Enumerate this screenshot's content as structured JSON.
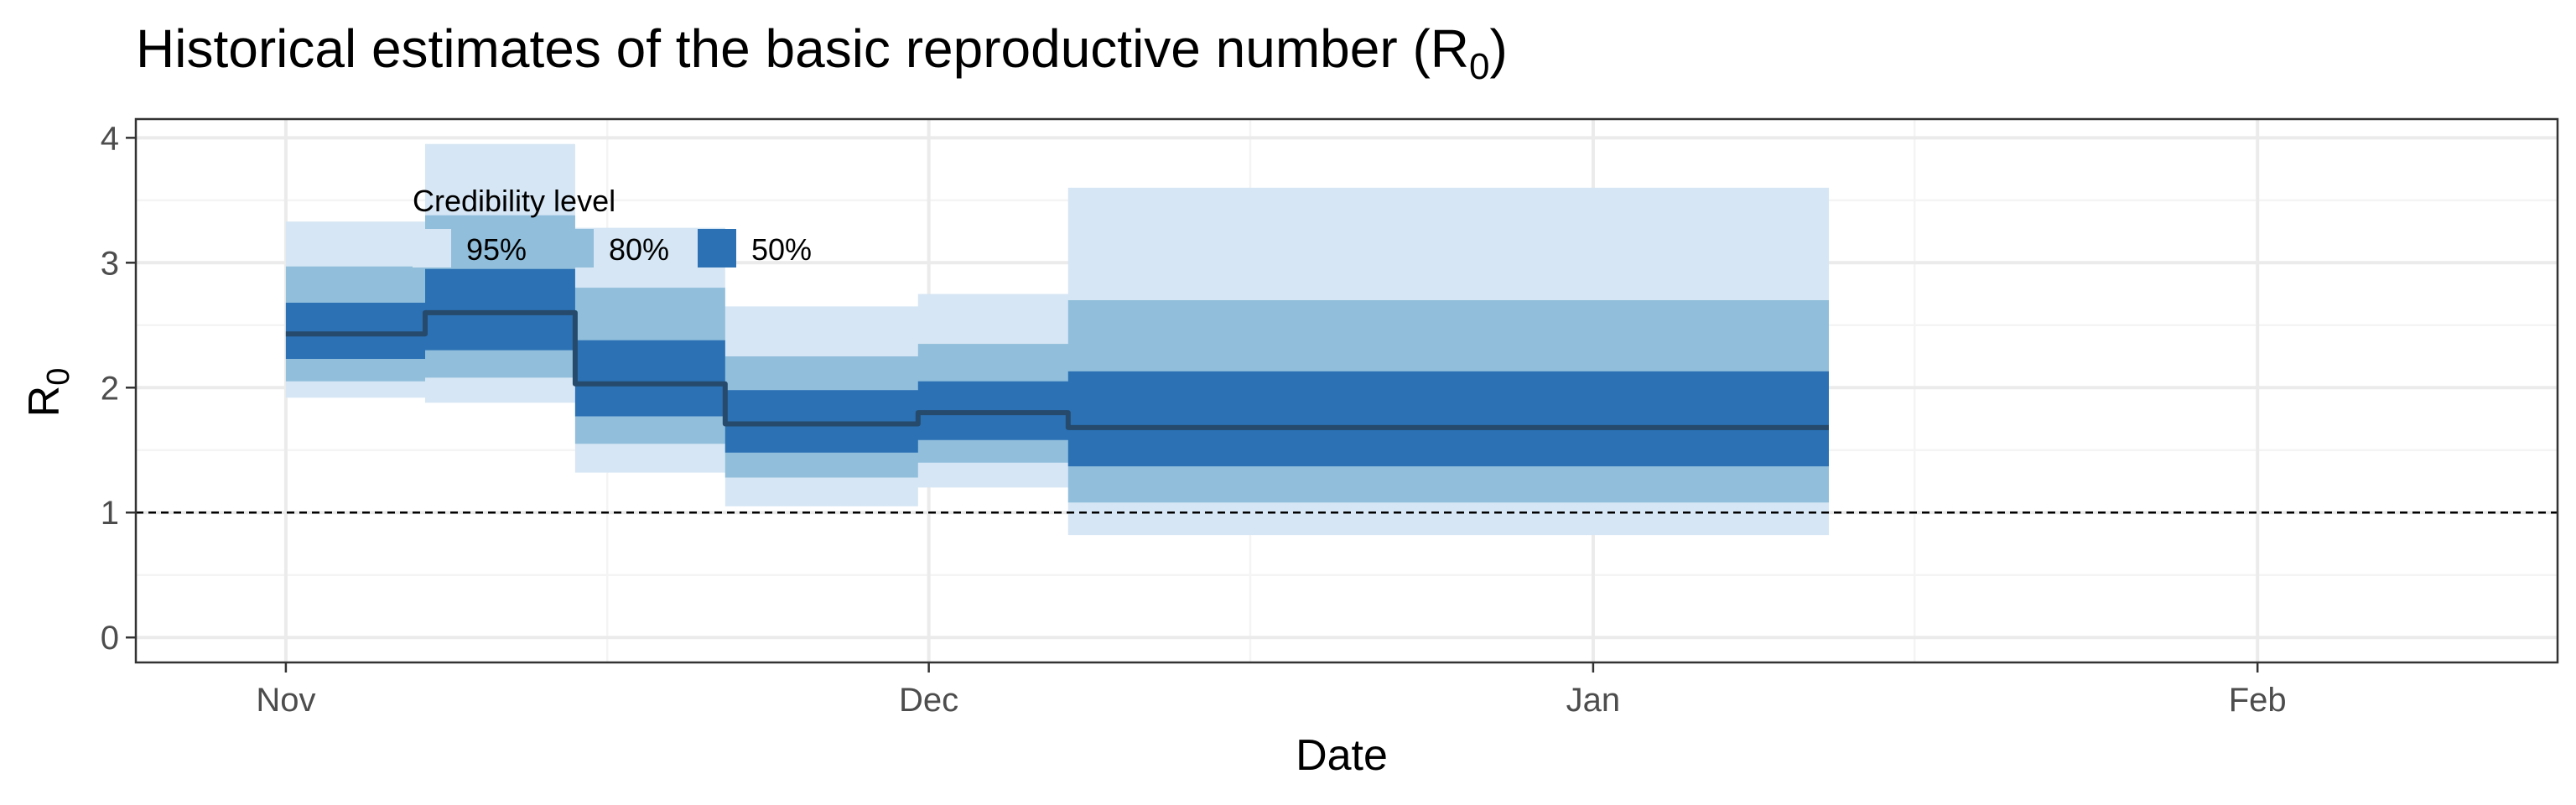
{
  "chart_data": {
    "type": "area",
    "title": "Historical estimates of the basic reproductive number (R",
    "title_subscript": "0",
    "title_suffix": ")",
    "xlabel": "Date",
    "ylabel": "R",
    "ylabel_subscript": "0",
    "xlim": [
      "2020-10-25",
      "2021-02-15"
    ],
    "ylim": [
      -0.2,
      4.15
    ],
    "x_ticks": [
      {
        "date": "2020-11-01",
        "label": "Nov"
      },
      {
        "date": "2020-12-01",
        "label": "Dec"
      },
      {
        "date": "2021-01-01",
        "label": "Jan"
      },
      {
        "date": "2021-02-01",
        "label": "Feb"
      }
    ],
    "x_minor_ticks": [
      "2020-11-16",
      "2020-12-16",
      "2021-01-16",
      "2021-02-15"
    ],
    "y_ticks": [
      0,
      1,
      2,
      3,
      4
    ],
    "y_minor_ticks": [
      0.5,
      1.5,
      2.5,
      3.5
    ],
    "grid": true,
    "reference_line": {
      "y": 1,
      "style": "dashed"
    },
    "legend": {
      "title": "Credibility level",
      "placement": "top-left inside",
      "items": [
        {
          "label": "95%",
          "color": "#d6e6f4"
        },
        {
          "label": "80%",
          "color": "#90bedb"
        },
        {
          "label": "50%",
          "color": "#2b71b4"
        }
      ]
    },
    "colors": {
      "band_95": "#d6e6f4",
      "band_80": "#90bedb",
      "band_50": "#2b71b4",
      "median": "#264a6b",
      "panel_border": "#333333",
      "grid_major": "#ebebeb",
      "grid_minor": "#f4f4f4"
    },
    "segments": [
      {
        "start": "2020-11-01",
        "end": "2020-11-07",
        "median": 2.43,
        "lower_50": 2.23,
        "upper_50": 2.68,
        "lower_80": 2.05,
        "upper_80": 2.97,
        "lower_95": 1.92,
        "upper_95": 3.33
      },
      {
        "start": "2020-11-08",
        "end": "2020-11-14",
        "median": 2.6,
        "lower_50": 2.3,
        "upper_50": 2.95,
        "lower_80": 2.08,
        "upper_80": 3.38,
        "lower_95": 1.88,
        "upper_95": 3.95
      },
      {
        "start": "2020-11-15",
        "end": "2020-11-21",
        "median": 2.03,
        "lower_50": 1.77,
        "upper_50": 2.38,
        "lower_80": 1.55,
        "upper_80": 2.8,
        "lower_95": 1.32,
        "upper_95": 3.28
      },
      {
        "start": "2020-11-22",
        "end": "2020-11-30",
        "median": 1.71,
        "lower_50": 1.48,
        "upper_50": 1.98,
        "lower_80": 1.28,
        "upper_80": 2.25,
        "lower_95": 1.05,
        "upper_95": 2.65
      },
      {
        "start": "2020-12-01",
        "end": "2020-12-07",
        "median": 1.8,
        "lower_50": 1.58,
        "upper_50": 2.05,
        "lower_80": 1.4,
        "upper_80": 2.35,
        "lower_95": 1.2,
        "upper_95": 2.75
      },
      {
        "start": "2020-12-08",
        "end": "2021-01-12",
        "median": 1.68,
        "lower_50": 1.37,
        "upper_50": 2.13,
        "lower_80": 1.08,
        "upper_80": 2.7,
        "lower_95": 0.82,
        "upper_95": 3.6
      }
    ]
  }
}
